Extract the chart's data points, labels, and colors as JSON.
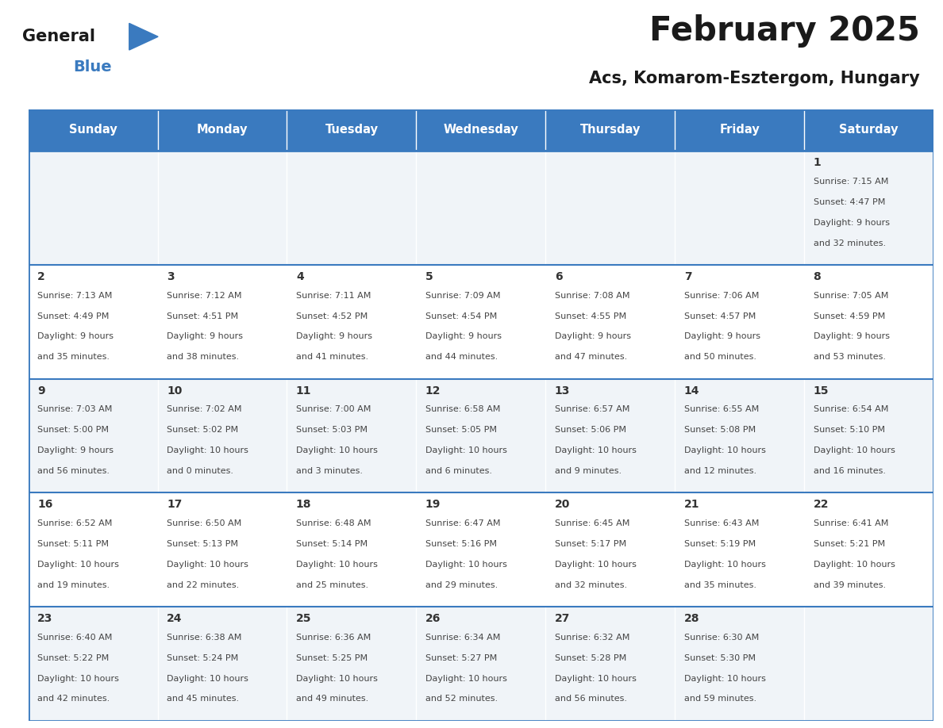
{
  "title": "February 2025",
  "subtitle": "Acs, Komarom-Esztergom, Hungary",
  "days_of_week": [
    "Sunday",
    "Monday",
    "Tuesday",
    "Wednesday",
    "Thursday",
    "Friday",
    "Saturday"
  ],
  "header_bg": "#3a7abf",
  "header_text": "#ffffff",
  "row_bg_odd": "#f0f4f8",
  "row_bg_even": "#ffffff",
  "border_color": "#3a7abf",
  "day_number_color": "#333333",
  "text_color": "#444444",
  "title_color": "#1a1a1a",
  "subtitle_color": "#1a1a1a",
  "logo_general_color": "#1a1a1a",
  "logo_blue_color": "#3a7abf",
  "logo_triangle_color": "#3a7abf",
  "calendar_data": [
    [
      null,
      null,
      null,
      null,
      null,
      null,
      {
        "day": 1,
        "sunrise": "7:15 AM",
        "sunset": "4:47 PM",
        "daylight": "9 hours and 32 minutes."
      }
    ],
    [
      {
        "day": 2,
        "sunrise": "7:13 AM",
        "sunset": "4:49 PM",
        "daylight": "9 hours and 35 minutes."
      },
      {
        "day": 3,
        "sunrise": "7:12 AM",
        "sunset": "4:51 PM",
        "daylight": "9 hours and 38 minutes."
      },
      {
        "day": 4,
        "sunrise": "7:11 AM",
        "sunset": "4:52 PM",
        "daylight": "9 hours and 41 minutes."
      },
      {
        "day": 5,
        "sunrise": "7:09 AM",
        "sunset": "4:54 PM",
        "daylight": "9 hours and 44 minutes."
      },
      {
        "day": 6,
        "sunrise": "7:08 AM",
        "sunset": "4:55 PM",
        "daylight": "9 hours and 47 minutes."
      },
      {
        "day": 7,
        "sunrise": "7:06 AM",
        "sunset": "4:57 PM",
        "daylight": "9 hours and 50 minutes."
      },
      {
        "day": 8,
        "sunrise": "7:05 AM",
        "sunset": "4:59 PM",
        "daylight": "9 hours and 53 minutes."
      }
    ],
    [
      {
        "day": 9,
        "sunrise": "7:03 AM",
        "sunset": "5:00 PM",
        "daylight": "9 hours and 56 minutes."
      },
      {
        "day": 10,
        "sunrise": "7:02 AM",
        "sunset": "5:02 PM",
        "daylight": "10 hours and 0 minutes."
      },
      {
        "day": 11,
        "sunrise": "7:00 AM",
        "sunset": "5:03 PM",
        "daylight": "10 hours and 3 minutes."
      },
      {
        "day": 12,
        "sunrise": "6:58 AM",
        "sunset": "5:05 PM",
        "daylight": "10 hours and 6 minutes."
      },
      {
        "day": 13,
        "sunrise": "6:57 AM",
        "sunset": "5:06 PM",
        "daylight": "10 hours and 9 minutes."
      },
      {
        "day": 14,
        "sunrise": "6:55 AM",
        "sunset": "5:08 PM",
        "daylight": "10 hours and 12 minutes."
      },
      {
        "day": 15,
        "sunrise": "6:54 AM",
        "sunset": "5:10 PM",
        "daylight": "10 hours and 16 minutes."
      }
    ],
    [
      {
        "day": 16,
        "sunrise": "6:52 AM",
        "sunset": "5:11 PM",
        "daylight": "10 hours and 19 minutes."
      },
      {
        "day": 17,
        "sunrise": "6:50 AM",
        "sunset": "5:13 PM",
        "daylight": "10 hours and 22 minutes."
      },
      {
        "day": 18,
        "sunrise": "6:48 AM",
        "sunset": "5:14 PM",
        "daylight": "10 hours and 25 minutes."
      },
      {
        "day": 19,
        "sunrise": "6:47 AM",
        "sunset": "5:16 PM",
        "daylight": "10 hours and 29 minutes."
      },
      {
        "day": 20,
        "sunrise": "6:45 AM",
        "sunset": "5:17 PM",
        "daylight": "10 hours and 32 minutes."
      },
      {
        "day": 21,
        "sunrise": "6:43 AM",
        "sunset": "5:19 PM",
        "daylight": "10 hours and 35 minutes."
      },
      {
        "day": 22,
        "sunrise": "6:41 AM",
        "sunset": "5:21 PM",
        "daylight": "10 hours and 39 minutes."
      }
    ],
    [
      {
        "day": 23,
        "sunrise": "6:40 AM",
        "sunset": "5:22 PM",
        "daylight": "10 hours and 42 minutes."
      },
      {
        "day": 24,
        "sunrise": "6:38 AM",
        "sunset": "5:24 PM",
        "daylight": "10 hours and 45 minutes."
      },
      {
        "day": 25,
        "sunrise": "6:36 AM",
        "sunset": "5:25 PM",
        "daylight": "10 hours and 49 minutes."
      },
      {
        "day": 26,
        "sunrise": "6:34 AM",
        "sunset": "5:27 PM",
        "daylight": "10 hours and 52 minutes."
      },
      {
        "day": 27,
        "sunrise": "6:32 AM",
        "sunset": "5:28 PM",
        "daylight": "10 hours and 56 minutes."
      },
      {
        "day": 28,
        "sunrise": "6:30 AM",
        "sunset": "5:30 PM",
        "daylight": "10 hours and 59 minutes."
      },
      null
    ]
  ]
}
